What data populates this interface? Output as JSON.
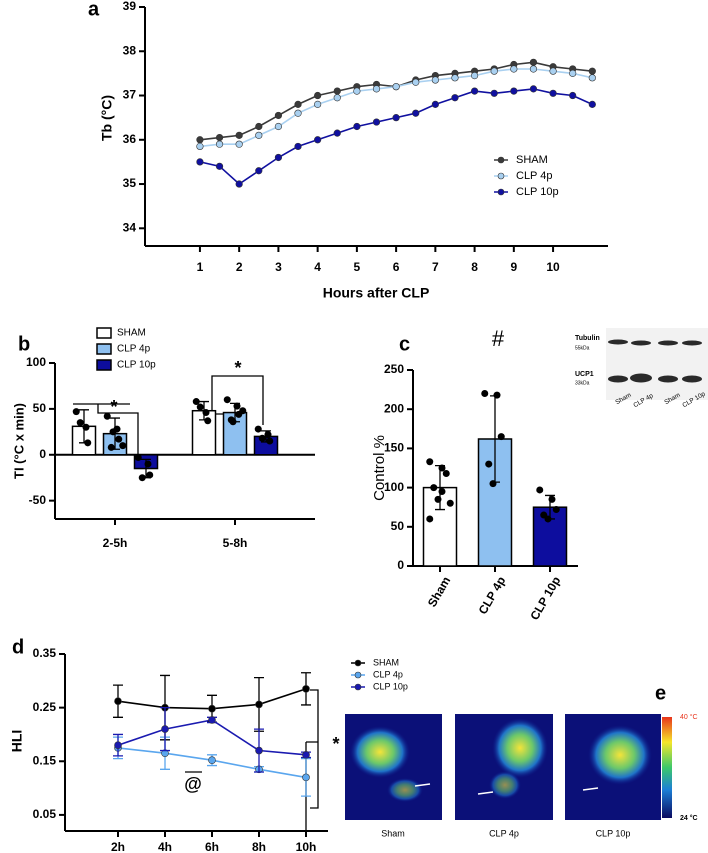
{
  "chart_data": [
    {
      "type": "line",
      "label": "a",
      "ylabel": "Tb (°C)",
      "xlabel": "Hours after CLP",
      "x": [
        1,
        1.5,
        2,
        2.5,
        3,
        3.5,
        4,
        4.5,
        5,
        5.5,
        6,
        6.5,
        7,
        7.5,
        8,
        8.5,
        9,
        9.5,
        10,
        10.5,
        11
      ],
      "xlim": [
        -0.4,
        11.4
      ],
      "xticks": [
        1,
        2,
        3,
        4,
        5,
        6,
        7,
        8,
        9,
        10
      ],
      "ylim": [
        33.6,
        39
      ],
      "yticks": [
        34,
        35,
        36,
        37,
        38,
        39
      ],
      "series": [
        {
          "name": "SHAM",
          "color": "#3a3a3a",
          "values": [
            36.0,
            36.05,
            36.1,
            36.3,
            36.55,
            36.8,
            37.0,
            37.1,
            37.2,
            37.25,
            37.2,
            37.35,
            37.45,
            37.5,
            37.55,
            37.6,
            37.7,
            37.75,
            37.65,
            37.6,
            37.55
          ]
        },
        {
          "name": "CLP 4p",
          "color": "#a9d0f0",
          "values": [
            35.85,
            35.9,
            35.9,
            36.1,
            36.3,
            36.6,
            36.8,
            36.95,
            37.1,
            37.15,
            37.2,
            37.3,
            37.35,
            37.4,
            37.45,
            37.55,
            37.6,
            37.6,
            37.55,
            37.5,
            37.4
          ]
        },
        {
          "name": "CLP 10p",
          "color": "#1010a0",
          "values": [
            35.5,
            35.4,
            35.0,
            35.3,
            35.6,
            35.85,
            36.0,
            36.15,
            36.3,
            36.4,
            36.5,
            36.6,
            36.8,
            36.95,
            37.1,
            37.05,
            37.1,
            37.15,
            37.05,
            37.0,
            36.8
          ]
        }
      ]
    },
    {
      "type": "bar",
      "label": "b",
      "ylabel": "TI (°C x min)",
      "categories": [
        "2-5h",
        "5-8h"
      ],
      "ylim": [
        -70,
        100
      ],
      "yticks": [
        -50,
        0,
        50,
        100
      ],
      "series": [
        {
          "name": "SHAM",
          "color": "#ffffff",
          "values": [
            31,
            48
          ],
          "errors": [
            18,
            10
          ],
          "points": [
            [
              47,
              30,
              13,
              35
            ],
            [
              58,
              46,
              37,
              52
            ]
          ]
        },
        {
          "name": "CLP 4p",
          "color": "#8ec0f0",
          "values": [
            23,
            46
          ],
          "errors": [
            17,
            10
          ],
          "points": [
            [
              42,
              28,
              17,
              8,
              25,
              10
            ],
            [
              60,
              53,
              44,
              38,
              36,
              48
            ]
          ]
        },
        {
          "name": "CLP 10p",
          "color": "#0d0d9e",
          "values": [
            -15,
            20
          ],
          "errors": [
            10,
            6
          ],
          "points": [
            [
              -3,
              -10,
              -22,
              -25
            ],
            [
              28,
              22,
              15,
              18
            ]
          ]
        }
      ],
      "annotations": [
        "*",
        "*"
      ]
    },
    {
      "type": "bar",
      "label": "c",
      "ylabel": "Control %",
      "categories": [
        "Sham",
        "CLP 4p",
        "CLP 10p"
      ],
      "values": [
        100,
        162,
        75
      ],
      "errors": [
        28,
        55,
        15
      ],
      "colors": [
        "#ffffff",
        "#8ec0f0",
        "#0d0d9e"
      ],
      "points": [
        [
          133,
          125,
          118,
          100,
          85,
          80,
          60,
          95
        ],
        [
          220,
          218,
          165,
          130,
          105
        ],
        [
          97,
          85,
          72,
          65,
          60
        ]
      ],
      "ylim": [
        0,
        250
      ],
      "yticks": [
        0,
        50,
        100,
        150,
        200,
        250
      ],
      "annotations": [
        "#"
      ]
    },
    {
      "type": "line",
      "label": "d",
      "ylabel": "HLI",
      "categories": [
        "2h",
        "4h",
        "6h",
        "8h",
        "10h"
      ],
      "ylim": [
        0.02,
        0.35
      ],
      "yticks": [
        0.05,
        0.15,
        0.25,
        0.35
      ],
      "series": [
        {
          "name": "SHAM",
          "color": "#000000",
          "values": [
            0.262,
            0.25,
            0.248,
            0.256,
            0.285
          ],
          "errors": [
            0.03,
            0.06,
            0.025,
            0.05,
            0.03
          ]
        },
        {
          "name": "CLP 4p",
          "color": "#5aa6ee",
          "values": [
            0.175,
            0.165,
            0.152,
            0.135,
            0.12
          ],
          "errors": [
            0.02,
            0.03,
            0.01,
            0.005,
            0.035
          ]
        },
        {
          "name": "CLP 10p",
          "color": "#1a1ab0",
          "values": [
            0.18,
            0.21,
            0.227,
            0.17,
            0.162
          ],
          "errors": [
            0.02,
            0.04,
            0.005,
            0.04,
            0.005
          ]
        }
      ],
      "annotations": [
        "@",
        "*"
      ]
    }
  ],
  "blot": {
    "rows": [
      {
        "name": "Tubulin",
        "size": "55kDa"
      },
      {
        "name": "UCP1",
        "size": "33kDa"
      }
    ],
    "lanes": [
      "Sham",
      "CLP 4p",
      "Sham",
      "CLP 10p"
    ]
  },
  "thermal": {
    "label": "e",
    "images": [
      "Sham",
      "CLP 4p",
      "CLP 10p"
    ],
    "scale_max": "40 °C",
    "scale_min": "24 °C"
  }
}
